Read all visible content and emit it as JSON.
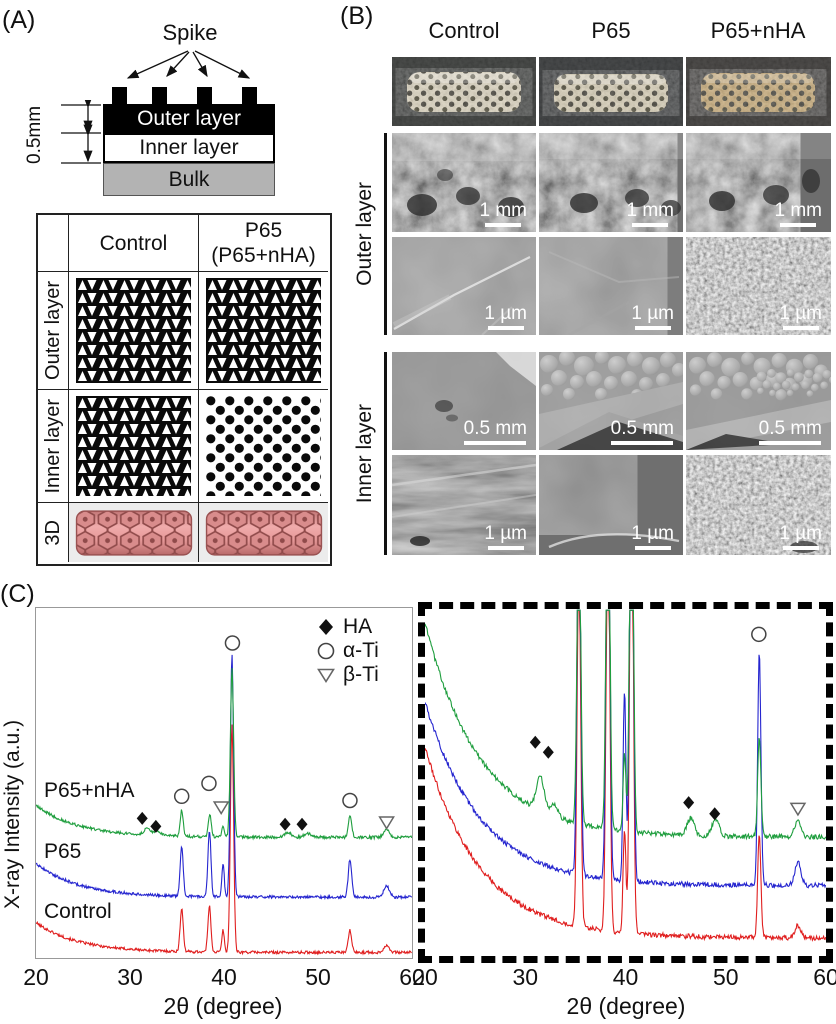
{
  "panelA": {
    "label": "(A)",
    "schematic": {
      "spike": "Spike",
      "outer": "Outer layer",
      "inner": "Inner layer",
      "bulk": "Bulk",
      "dim": "0.5mm"
    },
    "table": {
      "col1": "Control",
      "col2_line1": "P65",
      "col2_line2": "(P65+nHA)",
      "row1": "Outer layer",
      "row2": "Inner layer",
      "row3": "3D"
    }
  },
  "panelB": {
    "label": "(B)",
    "col1": "Control",
    "col2": "P65",
    "col3": "P65+nHA",
    "outer_label": "Outer layer",
    "inner_label": "Inner layer",
    "scale_outer_row1": "1 mm",
    "scale_outer_row2": "1 µm",
    "scale_inner_row1": "0.5 mm",
    "scale_inner_row2": "1 µm"
  },
  "panelC": {
    "label": "(C)",
    "ylabel": "X-ray Intensity (a.u.)",
    "xlabel": "2θ (degree)",
    "legend": [
      {
        "label": "HA"
      },
      {
        "label": "α-Ti"
      },
      {
        "label": "β-Ti"
      }
    ],
    "series_labels": {
      "top": "P65+nHA",
      "mid": "P65",
      "bottom": "Control"
    }
  },
  "chart_data": {
    "type": "line",
    "plots": [
      {
        "id": "xrd-full",
        "x_range": [
          20,
          60
        ],
        "x_ticks": [
          20,
          30,
          40,
          50,
          60
        ],
        "xlabel": "2θ (degree)",
        "ylabel": "X-ray Intensity (a.u.)",
        "grid": false,
        "series": [
          {
            "name": "Control",
            "color": "#e01f1f",
            "seed": 101,
            "baseline": 0.016,
            "bg_rise": 0.085,
            "bg_tau": 4.5,
            "noise": 0.004,
            "peaks": [
              {
                "c": 35.5,
                "h": 0.125,
                "w": 0.16
              },
              {
                "c": 38.45,
                "h": 0.131,
                "w": 0.16
              },
              {
                "c": 39.9,
                "h": 0.063,
                "w": 0.13
              },
              {
                "c": 40.85,
                "h": 0.65,
                "w": 0.17
              },
              {
                "c": 53.4,
                "h": 0.063,
                "w": 0.18
              },
              {
                "c": 57.3,
                "h": 0.02,
                "w": 0.3
              }
            ]
          },
          {
            "name": "P65",
            "color": "#2525cf",
            "seed": 202,
            "baseline": 0.174,
            "bg_rise": 0.097,
            "bg_tau": 4.5,
            "noise": 0.004,
            "peaks": [
              {
                "c": 35.5,
                "h": 0.142,
                "w": 0.16
              },
              {
                "c": 38.45,
                "h": 0.188,
                "w": 0.16
              },
              {
                "c": 39.9,
                "h": 0.094,
                "w": 0.13
              },
              {
                "c": 40.85,
                "h": 0.69,
                "w": 0.17
              },
              {
                "c": 53.4,
                "h": 0.108,
                "w": 0.18
              },
              {
                "c": 57.3,
                "h": 0.031,
                "w": 0.3
              }
            ]
          },
          {
            "name": "P65+nHA",
            "color": "#1f9e3e",
            "seed": 303,
            "baseline": 0.345,
            "bg_rise": 0.091,
            "bg_tau": 4.5,
            "noise": 0.004,
            "peaks": [
              {
                "c": 31.8,
                "h": 0.017,
                "w": 0.35
              },
              {
                "c": 32.9,
                "h": 0.014,
                "w": 0.35
              },
              {
                "c": 35.5,
                "h": 0.074,
                "w": 0.16
              },
              {
                "c": 38.5,
                "h": 0.063,
                "w": 0.16
              },
              {
                "c": 39.9,
                "h": 0.034,
                "w": 0.13
              },
              {
                "c": 40.85,
                "h": 0.48,
                "w": 0.17
              },
              {
                "c": 46.8,
                "h": 0.014,
                "w": 0.35
              },
              {
                "c": 48.9,
                "h": 0.011,
                "w": 0.35
              },
              {
                "c": 53.4,
                "h": 0.063,
                "w": 0.18
              },
              {
                "c": 57.3,
                "h": 0.023,
                "w": 0.3
              }
            ]
          }
        ],
        "markers": [
          {
            "sym": "diamond",
            "x": 31.3,
            "yf": 0.601
          },
          {
            "sym": "diamond",
            "x": 32.75,
            "yf": 0.624
          },
          {
            "sym": "circle",
            "x": 35.5,
            "yf": 0.538
          },
          {
            "sym": "circle",
            "x": 38.4,
            "yf": 0.501
          },
          {
            "sym": "triangle",
            "x": 39.7,
            "yf": 0.57
          },
          {
            "sym": "circle",
            "x": 40.9,
            "yf": 0.1
          },
          {
            "sym": "diamond",
            "x": 46.5,
            "yf": 0.618
          },
          {
            "sym": "diamond",
            "x": 48.3,
            "yf": 0.618
          },
          {
            "sym": "circle",
            "x": 53.4,
            "yf": 0.55
          },
          {
            "sym": "triangle",
            "x": 57.3,
            "yf": 0.613
          }
        ]
      },
      {
        "id": "xrd-zoom",
        "x_range": [
          20,
          60
        ],
        "x_ticks": [
          20,
          30,
          40,
          50,
          60
        ],
        "xlabel": "2θ (degree)",
        "grid": false,
        "series": [
          {
            "name": "Control",
            "color": "#e01f1f",
            "seed": 111,
            "baseline": 0.052,
            "bg_rise": 0.55,
            "bg_tau": 5.5,
            "noise": 0.007,
            "peaks": [
              {
                "c": 35.35,
                "h": 1.05,
                "w": 0.18
              },
              {
                "c": 38.25,
                "h": 1.25,
                "w": 0.18
              },
              {
                "c": 39.9,
                "h": 0.3,
                "w": 0.14
              },
              {
                "c": 40.6,
                "h": 1.4,
                "w": 0.18
              },
              {
                "c": 53.35,
                "h": 0.3,
                "w": 0.16
              },
              {
                "c": 57.2,
                "h": 0.035,
                "w": 0.3
              }
            ]
          },
          {
            "name": "P65",
            "color": "#2525cf",
            "seed": 222,
            "baseline": 0.203,
            "bg_rise": 0.53,
            "bg_tau": 5.5,
            "noise": 0.007,
            "peaks": [
              {
                "c": 35.35,
                "h": 1.15,
                "w": 0.18
              },
              {
                "c": 38.25,
                "h": 1.35,
                "w": 0.18
              },
              {
                "c": 39.9,
                "h": 0.55,
                "w": 0.14
              },
              {
                "c": 40.6,
                "h": 1.5,
                "w": 0.18
              },
              {
                "c": 53.35,
                "h": 0.67,
                "w": 0.16
              },
              {
                "c": 57.2,
                "h": 0.067,
                "w": 0.3
              }
            ]
          },
          {
            "name": "P65+nHA",
            "color": "#1f9e3e",
            "seed": 333,
            "baseline": 0.343,
            "bg_rise": 0.616,
            "bg_tau": 5.5,
            "noise": 0.007,
            "peaks": [
              {
                "c": 31.5,
                "h": 0.1,
                "w": 0.4
              },
              {
                "c": 32.9,
                "h": 0.035,
                "w": 0.35
              },
              {
                "c": 35.35,
                "h": 0.95,
                "w": 0.18
              },
              {
                "c": 38.25,
                "h": 1.15,
                "w": 0.18
              },
              {
                "c": 39.9,
                "h": 0.22,
                "w": 0.14
              },
              {
                "c": 40.6,
                "h": 1.3,
                "w": 0.18
              },
              {
                "c": 46.5,
                "h": 0.05,
                "w": 0.35
              },
              {
                "c": 49.0,
                "h": 0.05,
                "w": 0.35
              },
              {
                "c": 53.35,
                "h": 0.29,
                "w": 0.16
              },
              {
                "c": 57.2,
                "h": 0.05,
                "w": 0.3
              }
            ]
          }
        ],
        "markers": [
          {
            "sym": "diamond",
            "x": 31.0,
            "yf": 0.384
          },
          {
            "sym": "diamond",
            "x": 32.3,
            "yf": 0.413
          },
          {
            "sym": "diamond",
            "x": 46.3,
            "yf": 0.558
          },
          {
            "sym": "diamond",
            "x": 48.9,
            "yf": 0.59
          },
          {
            "sym": "circle",
            "x": 53.3,
            "yf": 0.073
          },
          {
            "sym": "triangle",
            "x": 57.2,
            "yf": 0.576
          }
        ]
      }
    ]
  }
}
